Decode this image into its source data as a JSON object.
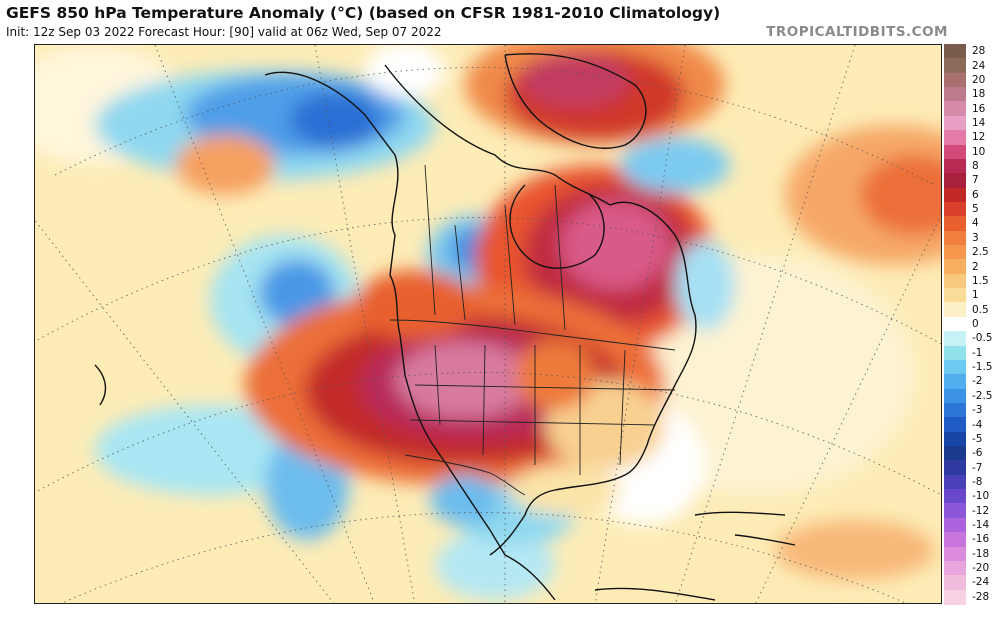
{
  "header": {
    "title": "GEFS 850 hPa Temperature Anomaly (°C) (based on CFSR 1981-2010 Climatology)",
    "subtitle": "Init: 12z Sep 03 2022   Forecast Hour: [90]   valid at 06z Wed, Sep 07 2022",
    "site": "TROPICALTIDBITS.COM"
  },
  "colorbar": {
    "levels": [
      {
        "label": "28",
        "color": "#7a5c4c"
      },
      {
        "label": "24",
        "color": "#8e6a5a"
      },
      {
        "label": "20",
        "color": "#a8706e"
      },
      {
        "label": "18",
        "color": "#bc7a8a"
      },
      {
        "label": "16",
        "color": "#d48aa8"
      },
      {
        "label": "14",
        "color": "#e8a0c4"
      },
      {
        "label": "12",
        "color": "#e67aa6"
      },
      {
        "label": "10",
        "color": "#d24a7a"
      },
      {
        "label": "8",
        "color": "#b82a52"
      },
      {
        "label": "7",
        "color": "#a8203e"
      },
      {
        "label": "6",
        "color": "#c02828"
      },
      {
        "label": "5",
        "color": "#d8402a"
      },
      {
        "label": "4",
        "color": "#e8602e"
      },
      {
        "label": "3",
        "color": "#f07e3c"
      },
      {
        "label": "2.5",
        "color": "#f4964c"
      },
      {
        "label": "2",
        "color": "#f6ae60"
      },
      {
        "label": "1.5",
        "color": "#f8c87c"
      },
      {
        "label": "1",
        "color": "#fadc98"
      },
      {
        "label": "0.5",
        "color": "#fdf0c6"
      },
      {
        "label": "0",
        "color": "#ffffff"
      },
      {
        "label": "-0.5",
        "color": "#c6f2f6"
      },
      {
        "label": "-1",
        "color": "#92e2ee"
      },
      {
        "label": "-1.5",
        "color": "#6ccaf0"
      },
      {
        "label": "-2",
        "color": "#52aeee"
      },
      {
        "label": "-2.5",
        "color": "#3c92e4"
      },
      {
        "label": "-3",
        "color": "#2c76d8"
      },
      {
        "label": "-4",
        "color": "#1e5cc4"
      },
      {
        "label": "-5",
        "color": "#1846a8"
      },
      {
        "label": "-6",
        "color": "#1a3a8e"
      },
      {
        "label": "-7",
        "color": "#2e3aa0"
      },
      {
        "label": "-8",
        "color": "#4a40b8"
      },
      {
        "label": "-10",
        "color": "#6a48cc"
      },
      {
        "label": "-12",
        "color": "#8c56d8"
      },
      {
        "label": "-14",
        "color": "#ac64de"
      },
      {
        "label": "-16",
        "color": "#c876de"
      },
      {
        "label": "-18",
        "color": "#dc8cdc"
      },
      {
        "label": "-20",
        "color": "#e8a4dc"
      },
      {
        "label": "-24",
        "color": "#f0bcdc"
      },
      {
        "label": "-28",
        "color": "#f6d2e2"
      }
    ]
  }
}
